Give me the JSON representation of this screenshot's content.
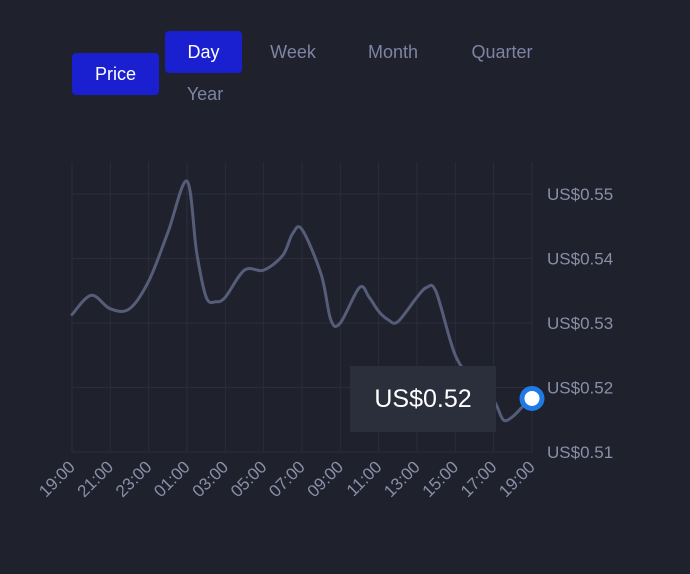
{
  "buttons": {
    "price": "Price"
  },
  "tabs": {
    "day": "Day",
    "week": "Week",
    "month": "Month",
    "quarter": "Quarter",
    "year": "Year"
  },
  "tooltip": {
    "value": "US$0.52"
  },
  "colors": {
    "background": "#1f212d",
    "active": "#1a1fd0",
    "line": "#565d78",
    "marker": "#1f7ae8",
    "grid": "#2b2d3a"
  },
  "chart_data": {
    "type": "line",
    "title": "",
    "x_tick_labels": [
      "19:00",
      "21:00",
      "23:00",
      "01:00",
      "03:00",
      "05:00",
      "07:00",
      "09:00",
      "11:00",
      "13:00",
      "15:00",
      "17:00",
      "19:00"
    ],
    "y_tick_labels": [
      "US$0.55",
      "US$0.54",
      "US$0.53",
      "US$0.52",
      "US$0.51"
    ],
    "y_ticks": [
      0.55,
      0.54,
      0.53,
      0.52,
      0.51
    ],
    "ylim": [
      0.51,
      0.55
    ],
    "xlim": [
      0,
      24
    ],
    "x_hours_from_start": [
      0,
      1,
      2,
      3,
      4,
      5,
      6,
      6.5,
      7,
      7.5,
      8,
      9,
      10,
      11,
      11.5,
      12,
      13,
      13.5,
      14,
      15,
      15.5,
      16,
      16.5,
      17,
      18,
      18.5,
      19,
      20,
      21,
      22,
      22.5,
      23,
      23.5,
      24
    ],
    "values": [
      0.5313,
      0.5343,
      0.5322,
      0.5322,
      0.5365,
      0.544,
      0.552,
      0.541,
      0.534,
      0.5333,
      0.534,
      0.5382,
      0.5382,
      0.5405,
      0.5438,
      0.5445,
      0.5375,
      0.5305,
      0.53,
      0.5355,
      0.534,
      0.5318,
      0.5305,
      0.5302,
      0.534,
      0.5355,
      0.5348,
      0.525,
      0.521,
      0.518,
      0.515,
      0.5155,
      0.517,
      0.5183
    ],
    "grid": true,
    "legend": "none"
  }
}
